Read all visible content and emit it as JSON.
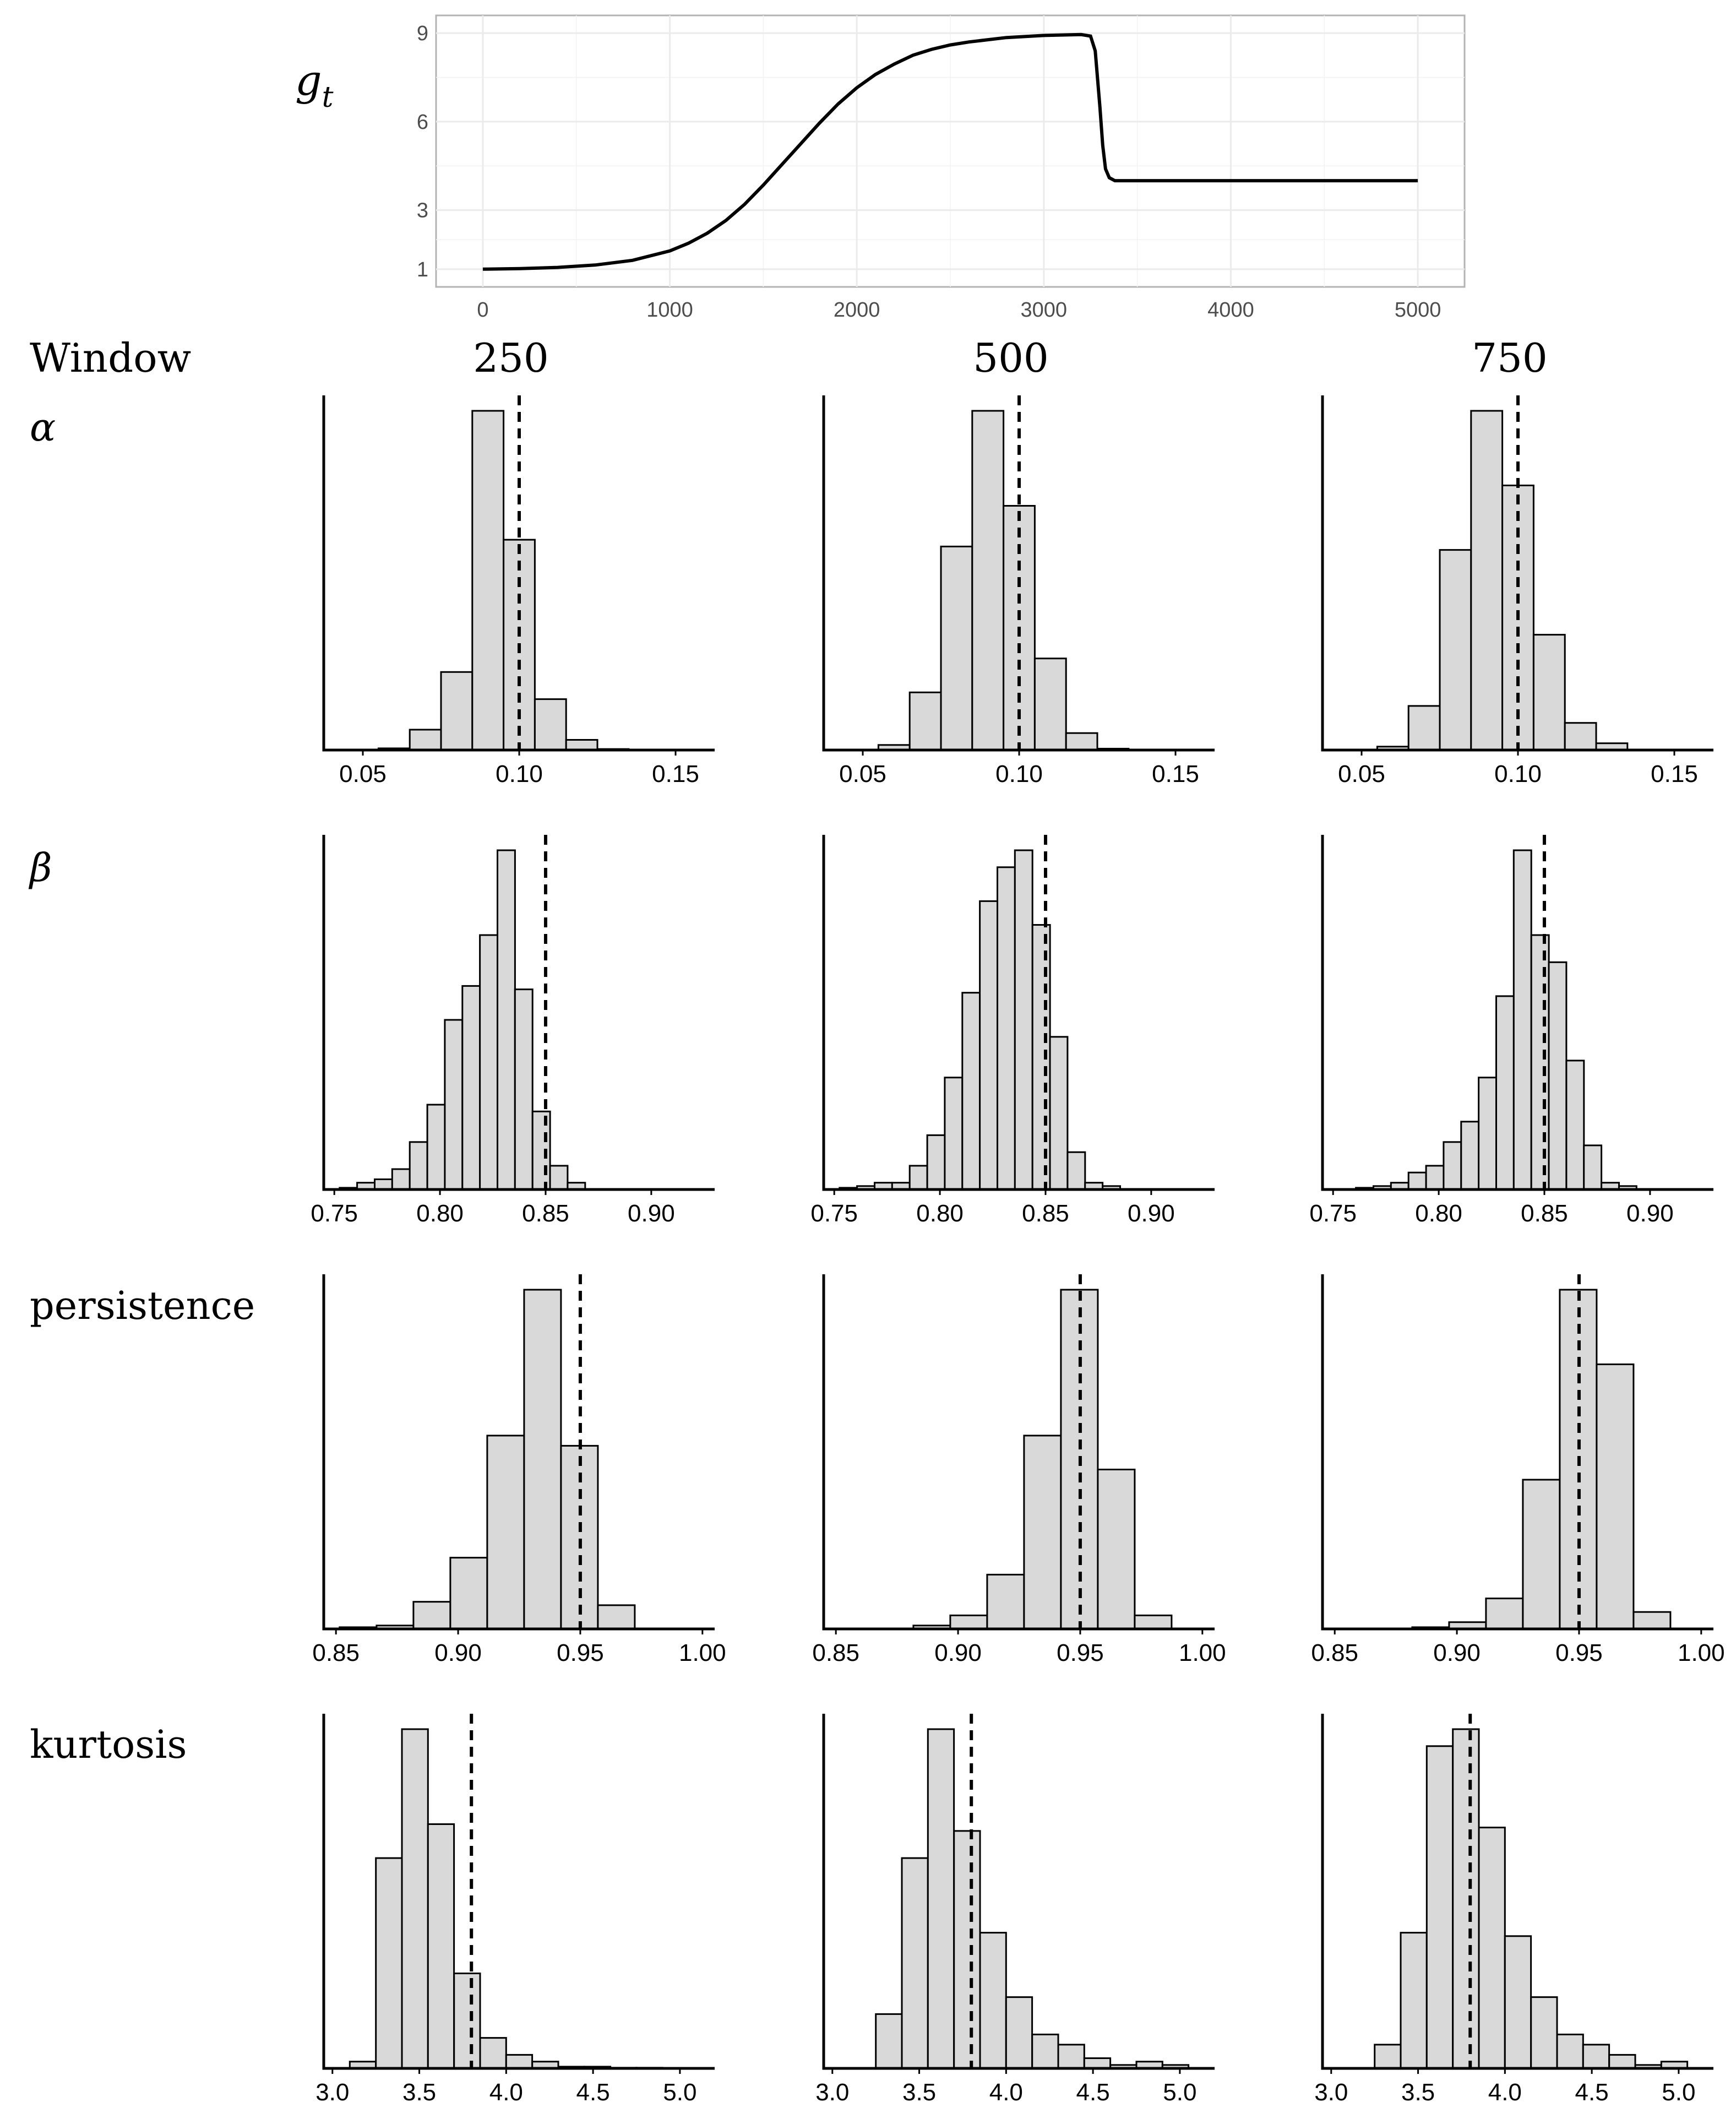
{
  "chart_data": [
    {
      "type": "line",
      "ylabel": "g_t",
      "x_ticks": [
        0,
        1000,
        2000,
        3000,
        4000,
        5000
      ],
      "y_ticks": [
        1,
        3,
        6,
        9
      ],
      "xlim": [
        -250,
        5250
      ],
      "ylim": [
        0.4,
        9.6
      ],
      "grid": true,
      "x": [
        0,
        200,
        400,
        600,
        800,
        1000,
        1100,
        1200,
        1300,
        1400,
        1500,
        1600,
        1700,
        1800,
        1900,
        2000,
        2100,
        2200,
        2300,
        2400,
        2500,
        2600,
        2800,
        3000,
        3200,
        3250,
        3275,
        3300,
        3315,
        3330,
        3350,
        3380,
        3500,
        4000,
        4500,
        5000
      ],
      "y": [
        1.0,
        1.02,
        1.06,
        1.14,
        1.3,
        1.62,
        1.88,
        2.22,
        2.65,
        3.2,
        3.85,
        4.55,
        5.25,
        5.95,
        6.6,
        7.15,
        7.6,
        7.95,
        8.25,
        8.45,
        8.6,
        8.7,
        8.85,
        8.92,
        8.95,
        8.9,
        8.4,
        6.5,
        5.2,
        4.4,
        4.1,
        4.0,
        4.0,
        4.0,
        4.0,
        4.0
      ]
    },
    {
      "type": "bar",
      "parameter": "α",
      "window": "250",
      "xlim": [
        0.0375,
        0.1625
      ],
      "x_ticks": [
        0.05,
        0.1,
        0.15
      ],
      "x_tick_labels": [
        "0.05",
        "0.10",
        "0.15"
      ],
      "bin_start": 0.045,
      "bin_width": 0.01,
      "values": [
        0,
        0.5,
        6,
        23,
        100,
        62,
        15,
        3,
        0.3,
        0
      ],
      "true_value": 0.1
    },
    {
      "type": "bar",
      "parameter": "α",
      "window": "500",
      "xlim": [
        0.0375,
        0.1625
      ],
      "x_ticks": [
        0.05,
        0.1,
        0.15
      ],
      "x_tick_labels": [
        "0.05",
        "0.10",
        "0.15"
      ],
      "bin_start": 0.045,
      "bin_width": 0.01,
      "values": [
        0,
        1.5,
        17,
        60,
        100,
        72,
        27,
        5,
        0.4,
        0
      ],
      "true_value": 0.1
    },
    {
      "type": "bar",
      "parameter": "α",
      "window": "750",
      "xlim": [
        0.0375,
        0.1625
      ],
      "x_ticks": [
        0.05,
        0.1,
        0.15
      ],
      "x_tick_labels": [
        "0.05",
        "0.10",
        "0.15"
      ],
      "bin_start": 0.045,
      "bin_width": 0.01,
      "values": [
        0,
        1,
        13,
        59,
        100,
        78,
        34,
        8,
        2,
        0
      ],
      "true_value": 0.1
    },
    {
      "type": "bar",
      "parameter": "β",
      "window": "250",
      "xlim": [
        0.745,
        0.93
      ],
      "x_ticks": [
        0.75,
        0.8,
        0.85,
        0.9
      ],
      "x_tick_labels": [
        "0.75",
        "0.80",
        "0.85",
        "0.90"
      ],
      "bin_start": 0.7525,
      "bin_width": 0.0083,
      "values": [
        0.5,
        2,
        3,
        6,
        14,
        25,
        50,
        60,
        75,
        100,
        59,
        23,
        7,
        2,
        0,
        0,
        0,
        0,
        0
      ],
      "true_value": 0.85
    },
    {
      "type": "bar",
      "parameter": "β",
      "window": "500",
      "xlim": [
        0.745,
        0.93
      ],
      "x_ticks": [
        0.75,
        0.8,
        0.85,
        0.9
      ],
      "x_tick_labels": [
        "0.75",
        "0.80",
        "0.85",
        "0.90"
      ],
      "bin_start": 0.7525,
      "bin_width": 0.0083,
      "values": [
        0.5,
        1,
        2,
        2,
        7,
        16,
        33,
        58,
        85,
        95,
        100,
        78,
        45,
        11,
        2,
        1,
        0,
        0,
        0
      ],
      "true_value": 0.85
    },
    {
      "type": "bar",
      "parameter": "β",
      "window": "750",
      "xlim": [
        0.745,
        0.93
      ],
      "x_ticks": [
        0.75,
        0.8,
        0.85,
        0.9
      ],
      "x_tick_labels": [
        "0.75",
        "0.80",
        "0.85",
        "0.90"
      ],
      "bin_start": 0.7525,
      "bin_width": 0.0083,
      "values": [
        0,
        0.5,
        1,
        2,
        5,
        7,
        14,
        20,
        33,
        57,
        100,
        75,
        67,
        38,
        13,
        2,
        1,
        0,
        0
      ],
      "true_value": 0.85
    },
    {
      "type": "bar",
      "parameter": "persistence",
      "window": "250",
      "xlim": [
        0.845,
        1.005
      ],
      "x_ticks": [
        0.85,
        0.9,
        0.95,
        1.0
      ],
      "x_tick_labels": [
        "0.85",
        "0.90",
        "0.95",
        "1.00"
      ],
      "bin_start": 0.8515,
      "bin_width": 0.0151,
      "values": [
        0.5,
        1,
        8,
        21,
        57,
        100,
        54,
        7,
        0,
        0
      ],
      "true_value": 0.95
    },
    {
      "type": "bar",
      "parameter": "persistence",
      "window": "500",
      "xlim": [
        0.845,
        1.005
      ],
      "x_ticks": [
        0.85,
        0.9,
        0.95,
        1.0
      ],
      "x_tick_labels": [
        "0.85",
        "0.90",
        "0.95",
        "1.00"
      ],
      "bin_start": 0.8515,
      "bin_width": 0.0151,
      "values": [
        0,
        0,
        1,
        4,
        16,
        57,
        100,
        47,
        4,
        0
      ],
      "true_value": 0.95
    },
    {
      "type": "bar",
      "parameter": "persistence",
      "window": "750",
      "xlim": [
        0.845,
        1.005
      ],
      "x_ticks": [
        0.85,
        0.9,
        0.95,
        1.0
      ],
      "x_tick_labels": [
        "0.85",
        "0.90",
        "0.95",
        "1.00"
      ],
      "bin_start": 0.8515,
      "bin_width": 0.0151,
      "values": [
        0,
        0,
        0.5,
        2,
        9,
        44,
        100,
        78,
        5,
        0
      ],
      "true_value": 0.95
    },
    {
      "type": "bar",
      "parameter": "kurtosis",
      "window": "250",
      "xlim": [
        2.95,
        5.2
      ],
      "x_ticks": [
        3.0,
        3.5,
        4.0,
        4.5,
        5.0
      ],
      "x_tick_labels": [
        "3.0",
        "3.5",
        "4.0",
        "4.5",
        "5.0"
      ],
      "bin_start": 3.1,
      "bin_width": 0.15,
      "values": [
        2,
        62,
        100,
        72,
        28,
        9,
        4,
        2,
        0.5,
        0.5,
        0.2,
        0.2,
        0
      ],
      "true_value": 3.8
    },
    {
      "type": "bar",
      "parameter": "kurtosis",
      "window": "500",
      "xlim": [
        2.95,
        5.2
      ],
      "x_ticks": [
        3.0,
        3.5,
        4.0,
        4.5,
        5.0
      ],
      "x_tick_labels": [
        "3.0",
        "3.5",
        "4.0",
        "4.5",
        "5.0"
      ],
      "bin_start": 3.1,
      "bin_width": 0.15,
      "values": [
        0,
        16,
        62,
        100,
        70,
        40,
        21,
        10,
        7,
        3,
        1,
        2,
        1
      ],
      "true_value": 3.8
    },
    {
      "type": "bar",
      "parameter": "kurtosis",
      "window": "750",
      "xlim": [
        2.95,
        5.2
      ],
      "x_ticks": [
        3.0,
        3.5,
        4.0,
        4.5,
        5.0
      ],
      "x_tick_labels": [
        "3.0",
        "3.5",
        "4.0",
        "4.5",
        "5.0"
      ],
      "bin_start": 3.1,
      "bin_width": 0.15,
      "values": [
        0,
        7,
        40,
        95,
        100,
        71,
        39,
        21,
        10,
        7,
        4,
        1,
        2
      ],
      "true_value": 3.8
    }
  ],
  "labels": {
    "window_header": "Window",
    "windows": [
      "250",
      "500",
      "750"
    ],
    "rows": [
      "α",
      "β",
      "persistence",
      "kurtosis"
    ],
    "top_ylabel_g": "g",
    "top_ylabel_t": "t"
  }
}
